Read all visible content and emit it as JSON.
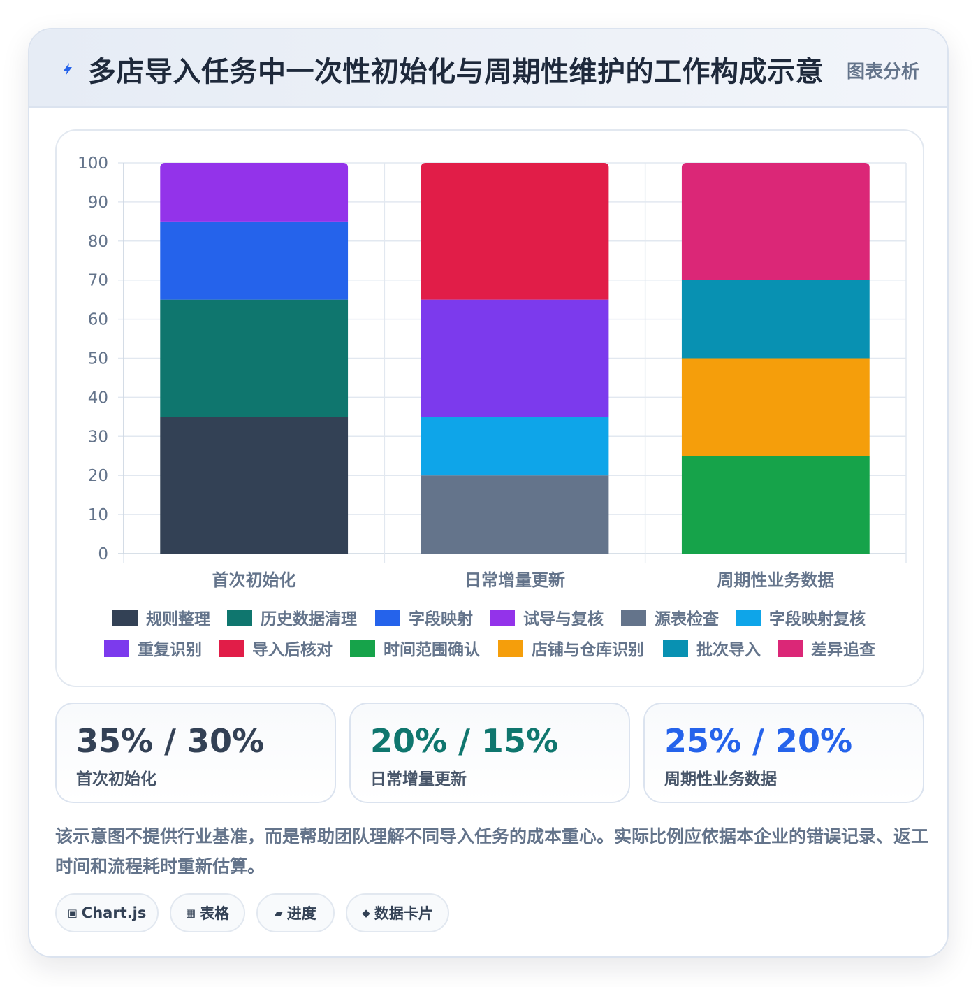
{
  "header": {
    "title": "多店导入任务中一次性初始化与周期性维护的工作构成示意",
    "tag": "图表分析"
  },
  "chart_data": {
    "type": "bar",
    "stacked": true,
    "categories": [
      "首次初始化",
      "日常增量更新",
      "周期性业务数据"
    ],
    "ylim": [
      0,
      100
    ],
    "yticks": [
      0,
      10,
      20,
      30,
      40,
      50,
      60,
      70,
      80,
      90,
      100
    ],
    "grid": true,
    "legend_position": "bottom",
    "series": [
      {
        "name": "规则整理",
        "color": "#334155",
        "values": [
          35,
          0,
          0
        ]
      },
      {
        "name": "历史数据清理",
        "color": "#0f766e",
        "values": [
          30,
          0,
          0
        ]
      },
      {
        "name": "字段映射",
        "color": "#2563eb",
        "values": [
          20,
          0,
          0
        ]
      },
      {
        "name": "试导与复核",
        "color": "#9333ea",
        "values": [
          15,
          0,
          0
        ]
      },
      {
        "name": "源表检查",
        "color": "#64748b",
        "values": [
          0,
          20,
          0
        ]
      },
      {
        "name": "字段映射复核",
        "color": "#0ea5e9",
        "values": [
          0,
          15,
          0
        ]
      },
      {
        "name": "重复识别",
        "color": "#7c3aed",
        "values": [
          0,
          30,
          0
        ]
      },
      {
        "name": "导入后核对",
        "color": "#e11d48",
        "values": [
          0,
          35,
          0
        ]
      },
      {
        "name": "时间范围确认",
        "color": "#16a34a",
        "values": [
          0,
          0,
          25
        ]
      },
      {
        "name": "店铺与仓库识别",
        "color": "#f59e0b",
        "values": [
          0,
          0,
          25
        ]
      },
      {
        "name": "批次导入",
        "color": "#0891b2",
        "values": [
          0,
          0,
          20
        ]
      },
      {
        "name": "差异追查",
        "color": "#db2777",
        "values": [
          0,
          0,
          30
        ]
      }
    ]
  },
  "stats": [
    {
      "value": "35% / 30%",
      "label": "首次初始化",
      "color": "#334155"
    },
    {
      "value": "20% / 15%",
      "label": "日常增量更新",
      "color": "#0f766e"
    },
    {
      "value": "25% / 20%",
      "label": "周期性业务数据",
      "color": "#2563eb"
    }
  ],
  "note": "该示意图不提供行业基准，而是帮助团队理解不同导入任务的成本重心。实际比例应依据本企业的错误记录、返工时间和流程耗时重新估算。",
  "pills": [
    {
      "icon": "▣",
      "icon_name": "chart-icon",
      "label": "Chart.js"
    },
    {
      "icon": "▦",
      "icon_name": "table-icon",
      "label": "表格"
    },
    {
      "icon": "▰",
      "icon_name": "progress-icon",
      "label": "进度"
    },
    {
      "icon": "◆",
      "icon_name": "card-icon",
      "label": "数据卡片"
    }
  ]
}
